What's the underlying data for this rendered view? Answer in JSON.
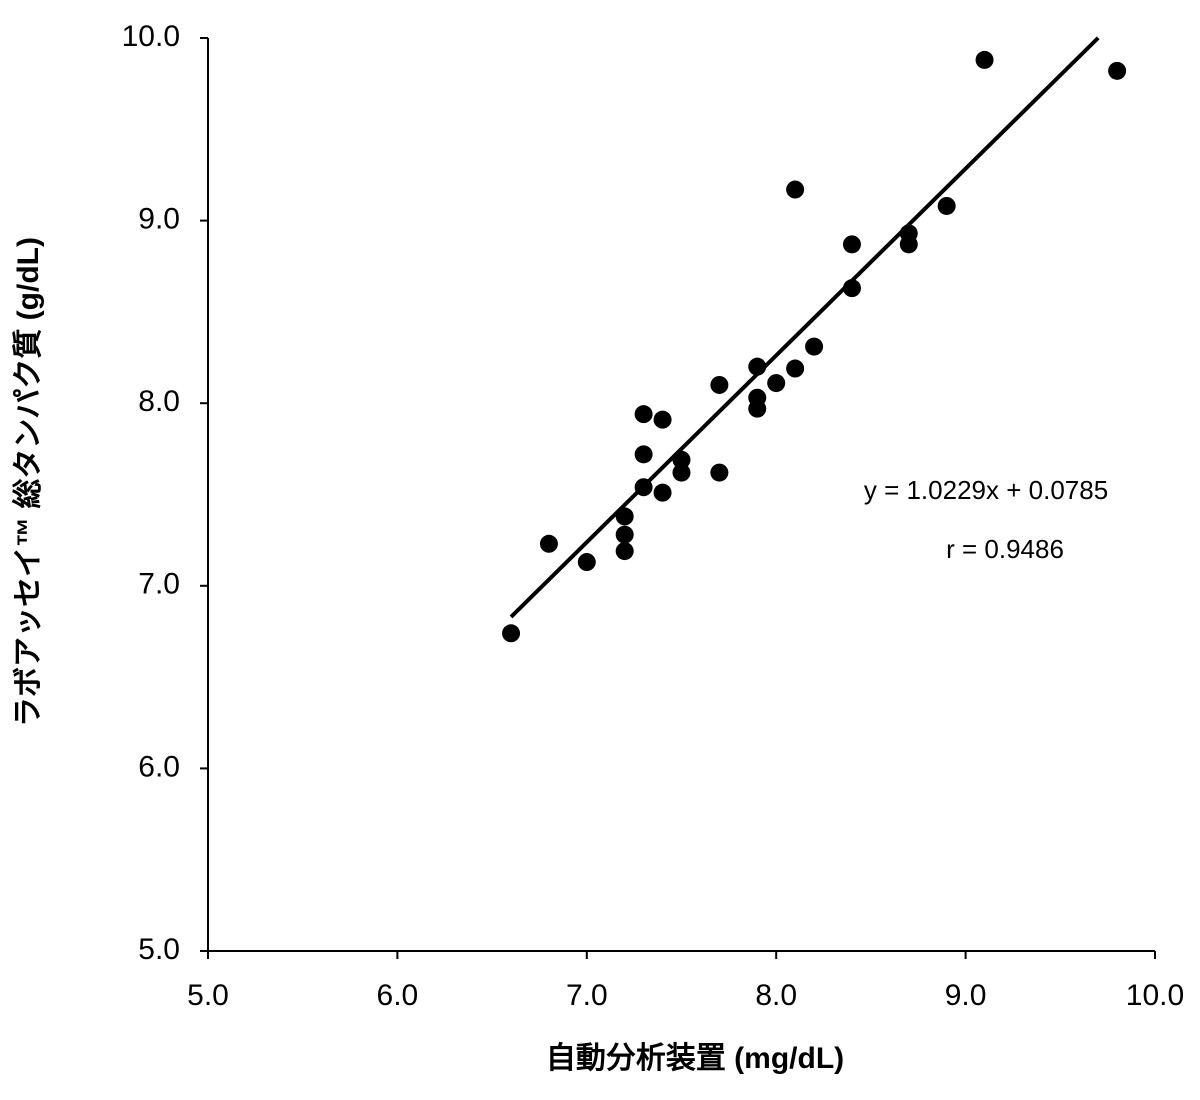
{
  "chart_data": {
    "type": "scatter",
    "x_label": "自動分析装置 (mg/dL)",
    "y_label": "ラボアッセイ™ 総タンパク質 (g/dL)",
    "x": [
      6.6,
      6.8,
      7.0,
      7.2,
      7.2,
      7.2,
      7.3,
      7.3,
      7.3,
      7.4,
      7.4,
      7.5,
      7.5,
      7.7,
      7.7,
      7.9,
      7.9,
      7.9,
      8.0,
      8.1,
      8.1,
      8.2,
      8.4,
      8.4,
      8.7,
      8.7,
      8.9,
      9.1,
      9.8
    ],
    "values": [
      6.74,
      7.23,
      7.13,
      7.38,
      7.28,
      7.19,
      7.94,
      7.72,
      7.54,
      7.91,
      7.51,
      7.69,
      7.62,
      8.1,
      7.62,
      8.2,
      8.03,
      7.97,
      8.11,
      9.17,
      8.19,
      8.31,
      8.87,
      8.63,
      8.93,
      8.87,
      9.08,
      9.88,
      9.82
    ],
    "color": "#000000",
    "trendline": {
      "slope": 1.0229,
      "intercept": 0.0785,
      "x": [
        6.6,
        9.7
      ]
    },
    "annotations": [
      "y = 1.0229x + 0.0785",
      "r = 0.9486"
    ],
    "xlim": [
      5,
      10
    ],
    "ylim": [
      5,
      10
    ],
    "xticks": [
      {
        "value": 5,
        "label": "5.0"
      },
      {
        "value": 6,
        "label": "6.0"
      },
      {
        "value": 7,
        "label": "7.0"
      },
      {
        "value": 8,
        "label": "8.0"
      },
      {
        "value": 9,
        "label": "9.0"
      },
      {
        "value": 10,
        "label": "10.0"
      }
    ],
    "yticks": [
      {
        "value": 5,
        "label": "5.0"
      },
      {
        "value": 6,
        "label": "6.0"
      },
      {
        "value": 7,
        "label": "7.0"
      },
      {
        "value": 8,
        "label": "8.0"
      },
      {
        "value": 9,
        "label": "9.0"
      },
      {
        "value": 10,
        "label": "10.0"
      }
    ],
    "grid": false
  }
}
